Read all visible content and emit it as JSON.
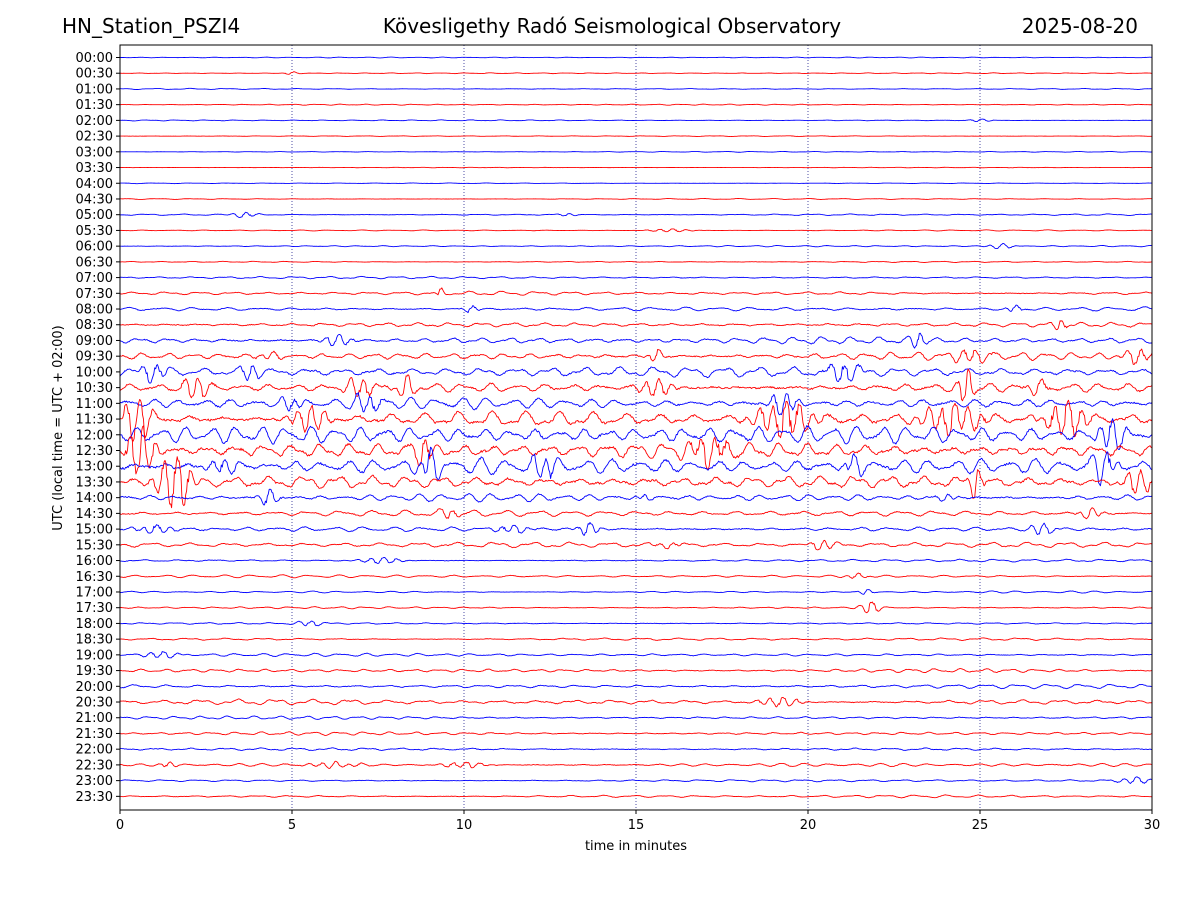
{
  "header": {
    "station": "HN_Station_PSZI4",
    "observatory": "Kövesligethy Radó Seismological Observatory",
    "date": "2025-08-20"
  },
  "colors": {
    "even_rows": "#0000ff",
    "odd_rows": "#ff0000",
    "grid": "#000080"
  },
  "chart_data": {
    "type": "line",
    "xlabel": "time in minutes",
    "ylabel": "UTC (local time = UTC + 02:00)",
    "xlim": [
      0,
      30
    ],
    "x_ticks": [
      0,
      5,
      10,
      15,
      20,
      25,
      30
    ],
    "vertical_grid": "dotted at every 5 minutes",
    "rows": [
      "00:00",
      "00:30",
      "01:00",
      "01:30",
      "02:00",
      "02:30",
      "03:00",
      "03:30",
      "04:00",
      "04:30",
      "05:00",
      "05:30",
      "06:00",
      "06:30",
      "07:00",
      "07:30",
      "08:00",
      "08:30",
      "09:00",
      "09:30",
      "10:00",
      "10:30",
      "11:00",
      "11:30",
      "12:00",
      "12:30",
      "13:00",
      "13:30",
      "14:00",
      "14:30",
      "15:00",
      "15:30",
      "16:00",
      "16:30",
      "17:00",
      "17:30",
      "18:00",
      "18:30",
      "19:00",
      "19:30",
      "20:00",
      "20:30",
      "21:00",
      "21:30",
      "22:00",
      "22:30",
      "23:00",
      "23:30"
    ],
    "row_activity": [
      0.3,
      0.3,
      0.4,
      0.4,
      0.4,
      0.3,
      0.3,
      0.3,
      0.3,
      0.4,
      0.6,
      0.4,
      0.5,
      0.5,
      0.8,
      1.4,
      1.8,
      2.0,
      2.6,
      3.0,
      3.6,
      4.4,
      4.4,
      6.0,
      6.0,
      6.0,
      6.0,
      5.0,
      3.0,
      2.4,
      2.4,
      2.0,
      1.2,
      1.0,
      0.8,
      0.8,
      0.8,
      1.0,
      1.2,
      1.4,
      1.6,
      2.0,
      1.2,
      1.2,
      1.4,
      1.4,
      1.0,
      1.0
    ],
    "events": [
      {
        "row": "00:30",
        "minute": 5.0,
        "amp": 1.5,
        "width": 0.2
      },
      {
        "row": "02:00",
        "minute": 25.0,
        "amp": 1.5,
        "width": 0.3
      },
      {
        "row": "05:00",
        "minute": 3.6,
        "amp": 2.5,
        "width": 0.4
      },
      {
        "row": "05:00",
        "minute": 13.0,
        "amp": 1.5,
        "width": 0.3
      },
      {
        "row": "05:30",
        "minute": 16.0,
        "amp": 1.5,
        "width": 0.6
      },
      {
        "row": "06:00",
        "minute": 25.6,
        "amp": 2.5,
        "width": 0.4
      },
      {
        "row": "07:30",
        "minute": 9.3,
        "amp": 6,
        "width": 0.1
      },
      {
        "row": "08:00",
        "minute": 10.2,
        "amp": 4,
        "width": 0.2
      },
      {
        "row": "08:00",
        "minute": 26.0,
        "amp": 4,
        "width": 0.2
      },
      {
        "row": "08:30",
        "minute": 27.3,
        "amp": 7,
        "width": 0.2
      },
      {
        "row": "09:00",
        "minute": 6.3,
        "amp": 6,
        "width": 0.4
      },
      {
        "row": "09:00",
        "minute": 23.2,
        "amp": 9,
        "width": 0.2
      },
      {
        "row": "09:30",
        "minute": 4.4,
        "amp": 3,
        "width": 0.4
      },
      {
        "row": "09:30",
        "minute": 15.6,
        "amp": 7,
        "width": 0.2
      },
      {
        "row": "09:30",
        "minute": 24.8,
        "amp": 7,
        "width": 0.5
      },
      {
        "row": "09:30",
        "minute": 29.6,
        "amp": 8,
        "width": 0.4
      },
      {
        "row": "10:00",
        "minute": 1.0,
        "amp": 8,
        "width": 0.4
      },
      {
        "row": "10:00",
        "minute": 3.8,
        "amp": 8,
        "width": 0.3
      },
      {
        "row": "10:00",
        "minute": 21.0,
        "amp": 9,
        "width": 0.5
      },
      {
        "row": "10:30",
        "minute": 2.2,
        "amp": 11,
        "width": 0.4
      },
      {
        "row": "10:30",
        "minute": 7.0,
        "amp": 11,
        "width": 0.4
      },
      {
        "row": "10:30",
        "minute": 8.3,
        "amp": 10,
        "width": 0.3
      },
      {
        "row": "10:30",
        "minute": 15.6,
        "amp": 9,
        "width": 0.5
      },
      {
        "row": "10:30",
        "minute": 24.6,
        "amp": 22,
        "width": 0.2
      },
      {
        "row": "10:30",
        "minute": 26.7,
        "amp": 5,
        "width": 0.4
      },
      {
        "row": "11:00",
        "minute": 5.0,
        "amp": 8,
        "width": 0.3
      },
      {
        "row": "11:00",
        "minute": 7.2,
        "amp": 10,
        "width": 0.4
      },
      {
        "row": "11:00",
        "minute": 19.3,
        "amp": 12,
        "width": 0.4
      },
      {
        "row": "11:30",
        "minute": 0.5,
        "amp": 22,
        "width": 0.4
      },
      {
        "row": "11:30",
        "minute": 5.5,
        "amp": 14,
        "width": 0.5
      },
      {
        "row": "11:30",
        "minute": 19.3,
        "amp": 18,
        "width": 0.8
      },
      {
        "row": "11:30",
        "minute": 24.2,
        "amp": 16,
        "width": 0.8
      },
      {
        "row": "11:30",
        "minute": 27.5,
        "amp": 18,
        "width": 0.6
      },
      {
        "row": "12:00",
        "minute": 28.8,
        "amp": 16,
        "width": 0.4
      },
      {
        "row": "12:30",
        "minute": 0.6,
        "amp": 26,
        "width": 0.4
      },
      {
        "row": "12:30",
        "minute": 8.8,
        "amp": 14,
        "width": 0.3
      },
      {
        "row": "12:30",
        "minute": 17.2,
        "amp": 14,
        "width": 0.6
      },
      {
        "row": "13:00",
        "minute": 3.0,
        "amp": 7,
        "width": 0.5
      },
      {
        "row": "13:00",
        "minute": 9.0,
        "amp": 16,
        "width": 0.3
      },
      {
        "row": "13:00",
        "minute": 12.3,
        "amp": 16,
        "width": 0.3
      },
      {
        "row": "13:00",
        "minute": 21.3,
        "amp": 10,
        "width": 0.3
      },
      {
        "row": "13:00",
        "minute": 28.6,
        "amp": 14,
        "width": 0.4
      },
      {
        "row": "13:30",
        "minute": 1.6,
        "amp": 26,
        "width": 0.5
      },
      {
        "row": "13:30",
        "minute": 24.9,
        "amp": 18,
        "width": 0.2
      },
      {
        "row": "13:30",
        "minute": 29.6,
        "amp": 14,
        "width": 0.4
      },
      {
        "row": "14:00",
        "minute": 4.3,
        "amp": 8,
        "width": 0.3
      },
      {
        "row": "14:00",
        "minute": 15.2,
        "amp": 4,
        "width": 0.2
      },
      {
        "row": "14:00",
        "minute": 24.0,
        "amp": 4,
        "width": 0.3
      },
      {
        "row": "14:30",
        "minute": 9.6,
        "amp": 5,
        "width": 0.3
      },
      {
        "row": "14:30",
        "minute": 28.2,
        "amp": 6,
        "width": 0.3
      },
      {
        "row": "15:00",
        "minute": 1.0,
        "amp": 4,
        "width": 0.6
      },
      {
        "row": "15:00",
        "minute": 11.4,
        "amp": 4,
        "width": 0.5
      },
      {
        "row": "15:00",
        "minute": 13.6,
        "amp": 7,
        "width": 0.3
      },
      {
        "row": "15:00",
        "minute": 26.8,
        "amp": 7,
        "width": 0.3
      },
      {
        "row": "15:30",
        "minute": 16.0,
        "amp": 3,
        "width": 0.4
      },
      {
        "row": "15:30",
        "minute": 20.4,
        "amp": 5,
        "width": 0.4
      },
      {
        "row": "16:00",
        "minute": 7.6,
        "amp": 3,
        "width": 0.6
      },
      {
        "row": "16:30",
        "minute": 21.4,
        "amp": 3,
        "width": 0.3
      },
      {
        "row": "17:00",
        "minute": 21.7,
        "amp": 3,
        "width": 0.2
      },
      {
        "row": "17:30",
        "minute": 21.8,
        "amp": 6,
        "width": 0.3
      },
      {
        "row": "18:00",
        "minute": 5.5,
        "amp": 2.5,
        "width": 0.4
      },
      {
        "row": "19:00",
        "minute": 1.2,
        "amp": 3,
        "width": 0.6
      },
      {
        "row": "20:30",
        "minute": 19.2,
        "amp": 5,
        "width": 0.6
      },
      {
        "row": "22:30",
        "minute": 1.4,
        "amp": 4,
        "width": 0.2
      },
      {
        "row": "22:30",
        "minute": 6.2,
        "amp": 3,
        "width": 0.7
      },
      {
        "row": "22:30",
        "minute": 10.0,
        "amp": 3,
        "width": 0.6
      },
      {
        "row": "23:00",
        "minute": 29.5,
        "amp": 3,
        "width": 0.6
      }
    ]
  }
}
